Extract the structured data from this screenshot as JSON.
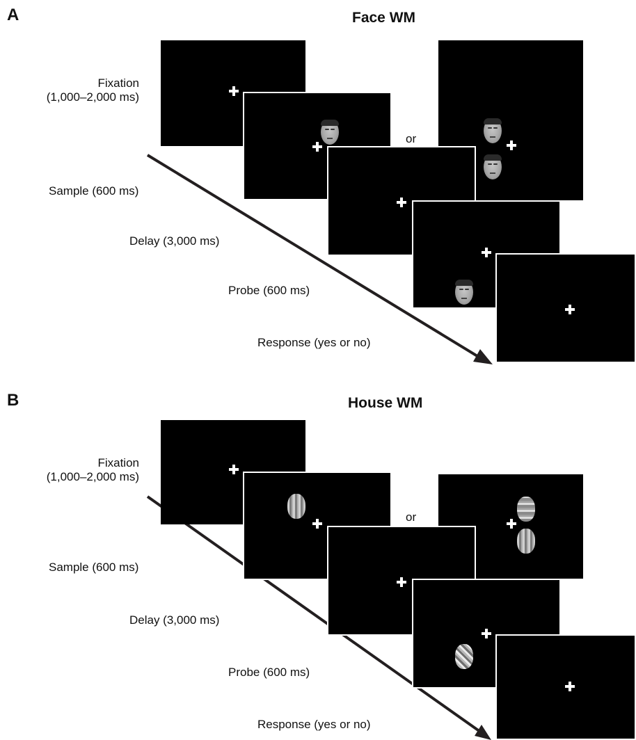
{
  "panels": [
    {
      "letter": "A",
      "title": "Face WM",
      "stimulus_type": "face",
      "labels": {
        "fixation_line1": "Fixation",
        "fixation_line2": "(1,000–2,000 ms)",
        "sample": "Sample (600 ms)",
        "delay": "Delay (3,000 ms)",
        "probe": "Probe (600 ms)",
        "response": "Response (yes or no)",
        "or": "or"
      }
    },
    {
      "letter": "B",
      "title": "House WM",
      "stimulus_type": "house",
      "labels": {
        "fixation_line1": "Fixation",
        "fixation_line2": "(1,000–2,000 ms)",
        "sample": "Sample (600 ms)",
        "delay": "Delay (3,000 ms)",
        "probe": "Probe (600 ms)",
        "response": "Response (yes or no)",
        "or": "or"
      }
    }
  ],
  "colors": {
    "screen": "#000000",
    "fixation_cross": "#ffffff",
    "arrow": "#231f20"
  }
}
